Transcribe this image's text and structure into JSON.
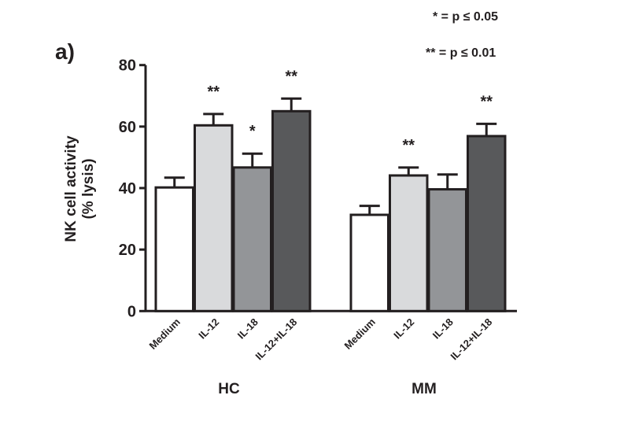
{
  "chart_data": {
    "type": "bar",
    "panel_label": "a)",
    "ylabel_line1": "NK cell activity",
    "ylabel_line2": "(% lysis)",
    "ylim": [
      0,
      80
    ],
    "yticks": [
      "0",
      "20",
      "40",
      "60",
      "80"
    ],
    "categories": [
      "Medium",
      "IL-12",
      "IL-18",
      "IL-12+IL-18"
    ],
    "colors": [
      "#ffffff",
      "#d9dadc",
      "#939598",
      "#58595b"
    ],
    "legend": [
      "* = p ≤ 0.05",
      "** = p ≤ 0.01"
    ],
    "groups": [
      {
        "name": "HC",
        "values": [
          40.2,
          60.4,
          46.7,
          65.0
        ],
        "errors": [
          3.2,
          3.7,
          4.5,
          4.1
        ],
        "significance": [
          "",
          "**",
          "*",
          "**"
        ]
      },
      {
        "name": "MM",
        "values": [
          31.3,
          44.1,
          39.6,
          56.9
        ],
        "errors": [
          2.9,
          2.6,
          4.8,
          4.0
        ],
        "significance": [
          "",
          "**",
          "",
          "**"
        ]
      }
    ]
  }
}
